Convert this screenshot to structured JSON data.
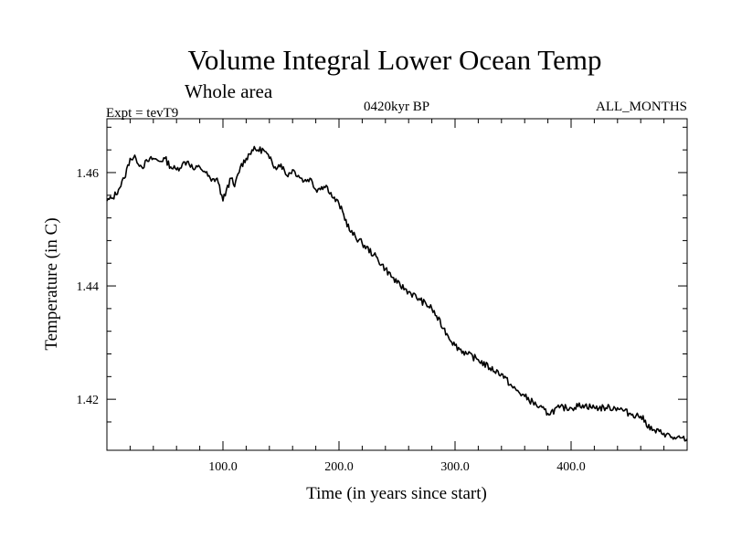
{
  "page": {
    "title": "Volume Integral Lower Ocean Temp",
    "subtitle": "Whole area",
    "left_label": "Expt = tevT9",
    "center_label": "0420kyr BP",
    "right_label": "ALL_MONTHS"
  },
  "colors": {
    "line": "#000000",
    "axis": "#000000",
    "background": "#ffffff"
  },
  "chart_data": {
    "type": "line",
    "title": "Volume Integral Lower Ocean Temp",
    "subtitle": "Whole area",
    "xlabel": "Time (in years since start)",
    "ylabel": "Temperature (in C)",
    "xlim": [
      0,
      500
    ],
    "ylim": [
      1.411,
      1.4695
    ],
    "x_ticks": [
      100,
      200,
      300,
      400
    ],
    "x_tick_labels": [
      "100.0",
      "200.0",
      "300.0",
      "400.0"
    ],
    "y_ticks": [
      1.42,
      1.44,
      1.46
    ],
    "y_tick_labels": [
      "1.42",
      "1.44",
      "1.46"
    ],
    "grid": false,
    "series": [
      {
        "x": [
          0,
          5,
          10,
          15,
          20,
          25,
          30,
          35,
          40,
          45,
          50,
          55,
          60,
          65,
          70,
          75,
          80,
          85,
          90,
          95,
          100,
          103,
          107,
          110,
          115,
          120,
          125,
          130,
          135,
          140,
          145,
          150,
          155,
          160,
          165,
          170,
          175,
          180,
          185,
          190,
          195,
          200,
          210,
          220,
          230,
          240,
          250,
          260,
          270,
          280,
          290,
          300,
          310,
          320,
          330,
          340,
          350,
          360,
          370,
          380,
          390,
          400,
          410,
          420,
          430,
          440,
          450,
          460,
          470,
          480,
          490,
          500
        ],
        "y": [
          1.455,
          1.4555,
          1.457,
          1.459,
          1.4625,
          1.4625,
          1.461,
          1.462,
          1.4625,
          1.462,
          1.4625,
          1.461,
          1.4605,
          1.4615,
          1.462,
          1.4605,
          1.461,
          1.46,
          1.4585,
          1.459,
          1.455,
          1.457,
          1.459,
          1.4575,
          1.461,
          1.4625,
          1.464,
          1.464,
          1.464,
          1.4625,
          1.461,
          1.4615,
          1.4595,
          1.4605,
          1.4595,
          1.4585,
          1.459,
          1.457,
          1.4575,
          1.4575,
          1.4555,
          1.4545,
          1.4495,
          1.4475,
          1.4455,
          1.443,
          1.4405,
          1.439,
          1.4375,
          1.436,
          1.4325,
          1.4295,
          1.428,
          1.427,
          1.4255,
          1.4245,
          1.422,
          1.4205,
          1.419,
          1.4175,
          1.4185,
          1.4185,
          1.419,
          1.4185,
          1.4185,
          1.4185,
          1.4175,
          1.417,
          1.4145,
          1.414,
          1.413,
          1.413
        ]
      }
    ]
  }
}
